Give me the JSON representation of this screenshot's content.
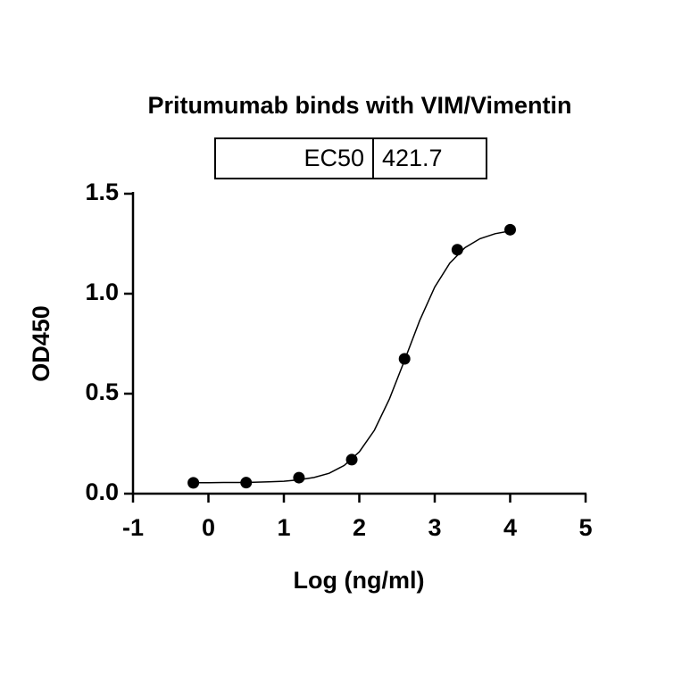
{
  "chart_data": {
    "type": "scatter",
    "title": "Pritumumab binds with VIM/Vimentin",
    "table": {
      "header": "EC50",
      "value": "421.7"
    },
    "x_label": "Log (ng/ml)",
    "y_label": "OD450",
    "x": [
      -0.2,
      0.5,
      1.2,
      1.9,
      2.6,
      3.3,
      4.0
    ],
    "values": [
      0.054,
      0.055,
      0.08,
      0.17,
      0.674,
      1.22,
      1.32
    ],
    "color": "#000000",
    "curve": {
      "x": [
        -0.2,
        0,
        0.2,
        0.4,
        0.6,
        0.8,
        1.0,
        1.2,
        1.4,
        1.6,
        1.8,
        2.0,
        2.2,
        2.4,
        2.6,
        2.8,
        3.0,
        3.2,
        3.4,
        3.6,
        3.8,
        4.0
      ],
      "values": [
        0.055,
        0.055,
        0.056,
        0.056,
        0.057,
        0.059,
        0.062,
        0.069,
        0.081,
        0.102,
        0.141,
        0.209,
        0.317,
        0.474,
        0.667,
        0.865,
        1.033,
        1.153,
        1.23,
        1.275,
        1.3,
        1.314
      ]
    },
    "xlim": [
      -1,
      5
    ],
    "xticks": [
      -1,
      0,
      1,
      2,
      3,
      4,
      5
    ],
    "ylim": [
      0,
      1.5
    ],
    "yticks": [
      {
        "value": 0,
        "label": "0.0"
      },
      {
        "value": 0.5,
        "label": "0.5"
      },
      {
        "value": 1,
        "label": "1.0"
      },
      {
        "value": 1.5,
        "label": "1.5"
      }
    ]
  }
}
